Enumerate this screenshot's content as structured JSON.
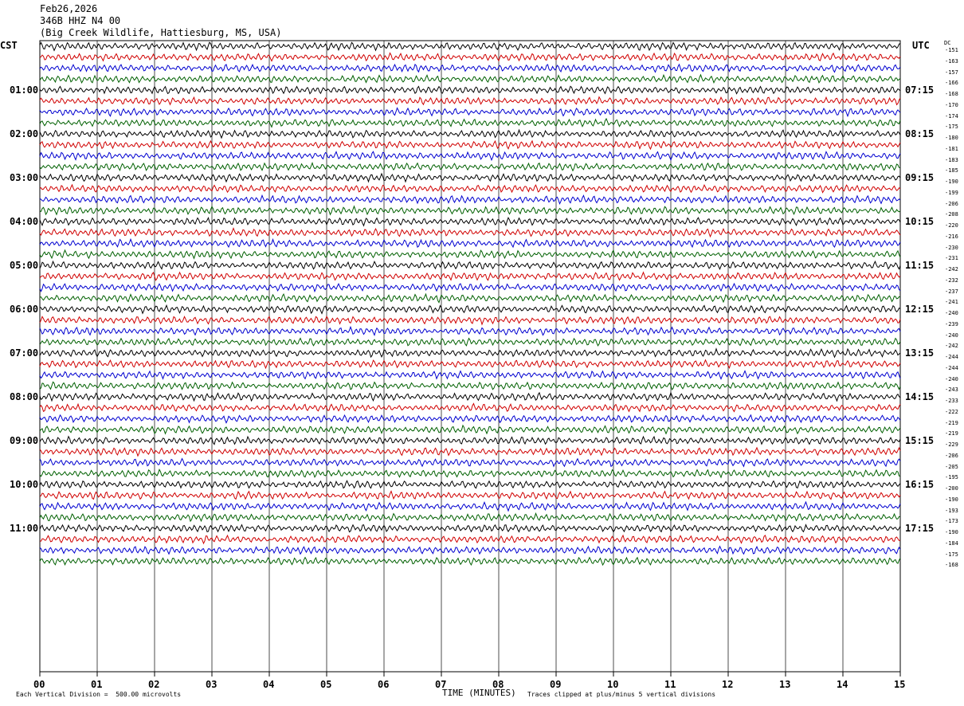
{
  "header": {
    "date": "Feb26,2026",
    "station": "346B HHZ N4 00",
    "location": "(Big Creek Wildlife, Hattiesburg, MS, USA)"
  },
  "left_tz": "CST",
  "right_tz": "UTC",
  "dc_label": "DC",
  "chart_data": {
    "type": "line",
    "title": "346B HHZ N4 00",
    "xlabel": "TIME (MINUTES)",
    "x_ticks": [
      "00",
      "01",
      "02",
      "03",
      "04",
      "05",
      "06",
      "07",
      "08",
      "09",
      "10",
      "11",
      "12",
      "13",
      "14",
      "15"
    ],
    "xlim": [
      0,
      15
    ],
    "row_count": 48,
    "rows_per_hour": 4,
    "trace_colors": [
      "#000000",
      "#d00000",
      "#0000d0",
      "#006000"
    ],
    "left_hour_labels": [
      "01:00",
      "02:00",
      "03:00",
      "04:00",
      "05:00",
      "06:00",
      "07:00",
      "08:00",
      "09:00",
      "10:00",
      "11:00"
    ],
    "right_hour_labels": [
      "07:15",
      "08:15",
      "09:15",
      "10:15",
      "11:15",
      "12:15",
      "13:15",
      "14:15",
      "15:15",
      "16:15",
      "17:15"
    ],
    "dc_offsets": [
      -151,
      -163,
      -157,
      -166,
      -168,
      -170,
      -174,
      -175,
      -180,
      -181,
      -183,
      -185,
      -190,
      -199,
      -206,
      -208,
      -220,
      -216,
      -230,
      -231,
      -242,
      -232,
      -237,
      -241,
      -240,
      -239,
      -240,
      -242,
      -244,
      -244,
      -240,
      -243,
      -233,
      -222,
      -219,
      -219,
      -229,
      -206,
      -205,
      -195,
      -200,
      -190,
      -193,
      -173,
      -190,
      -184,
      -175,
      -168
    ],
    "vertical_division": "Each Vertical Division =  500.00 microvolts",
    "clip_note": "Traces clipped at plus/minus 5 vertical divisions"
  }
}
